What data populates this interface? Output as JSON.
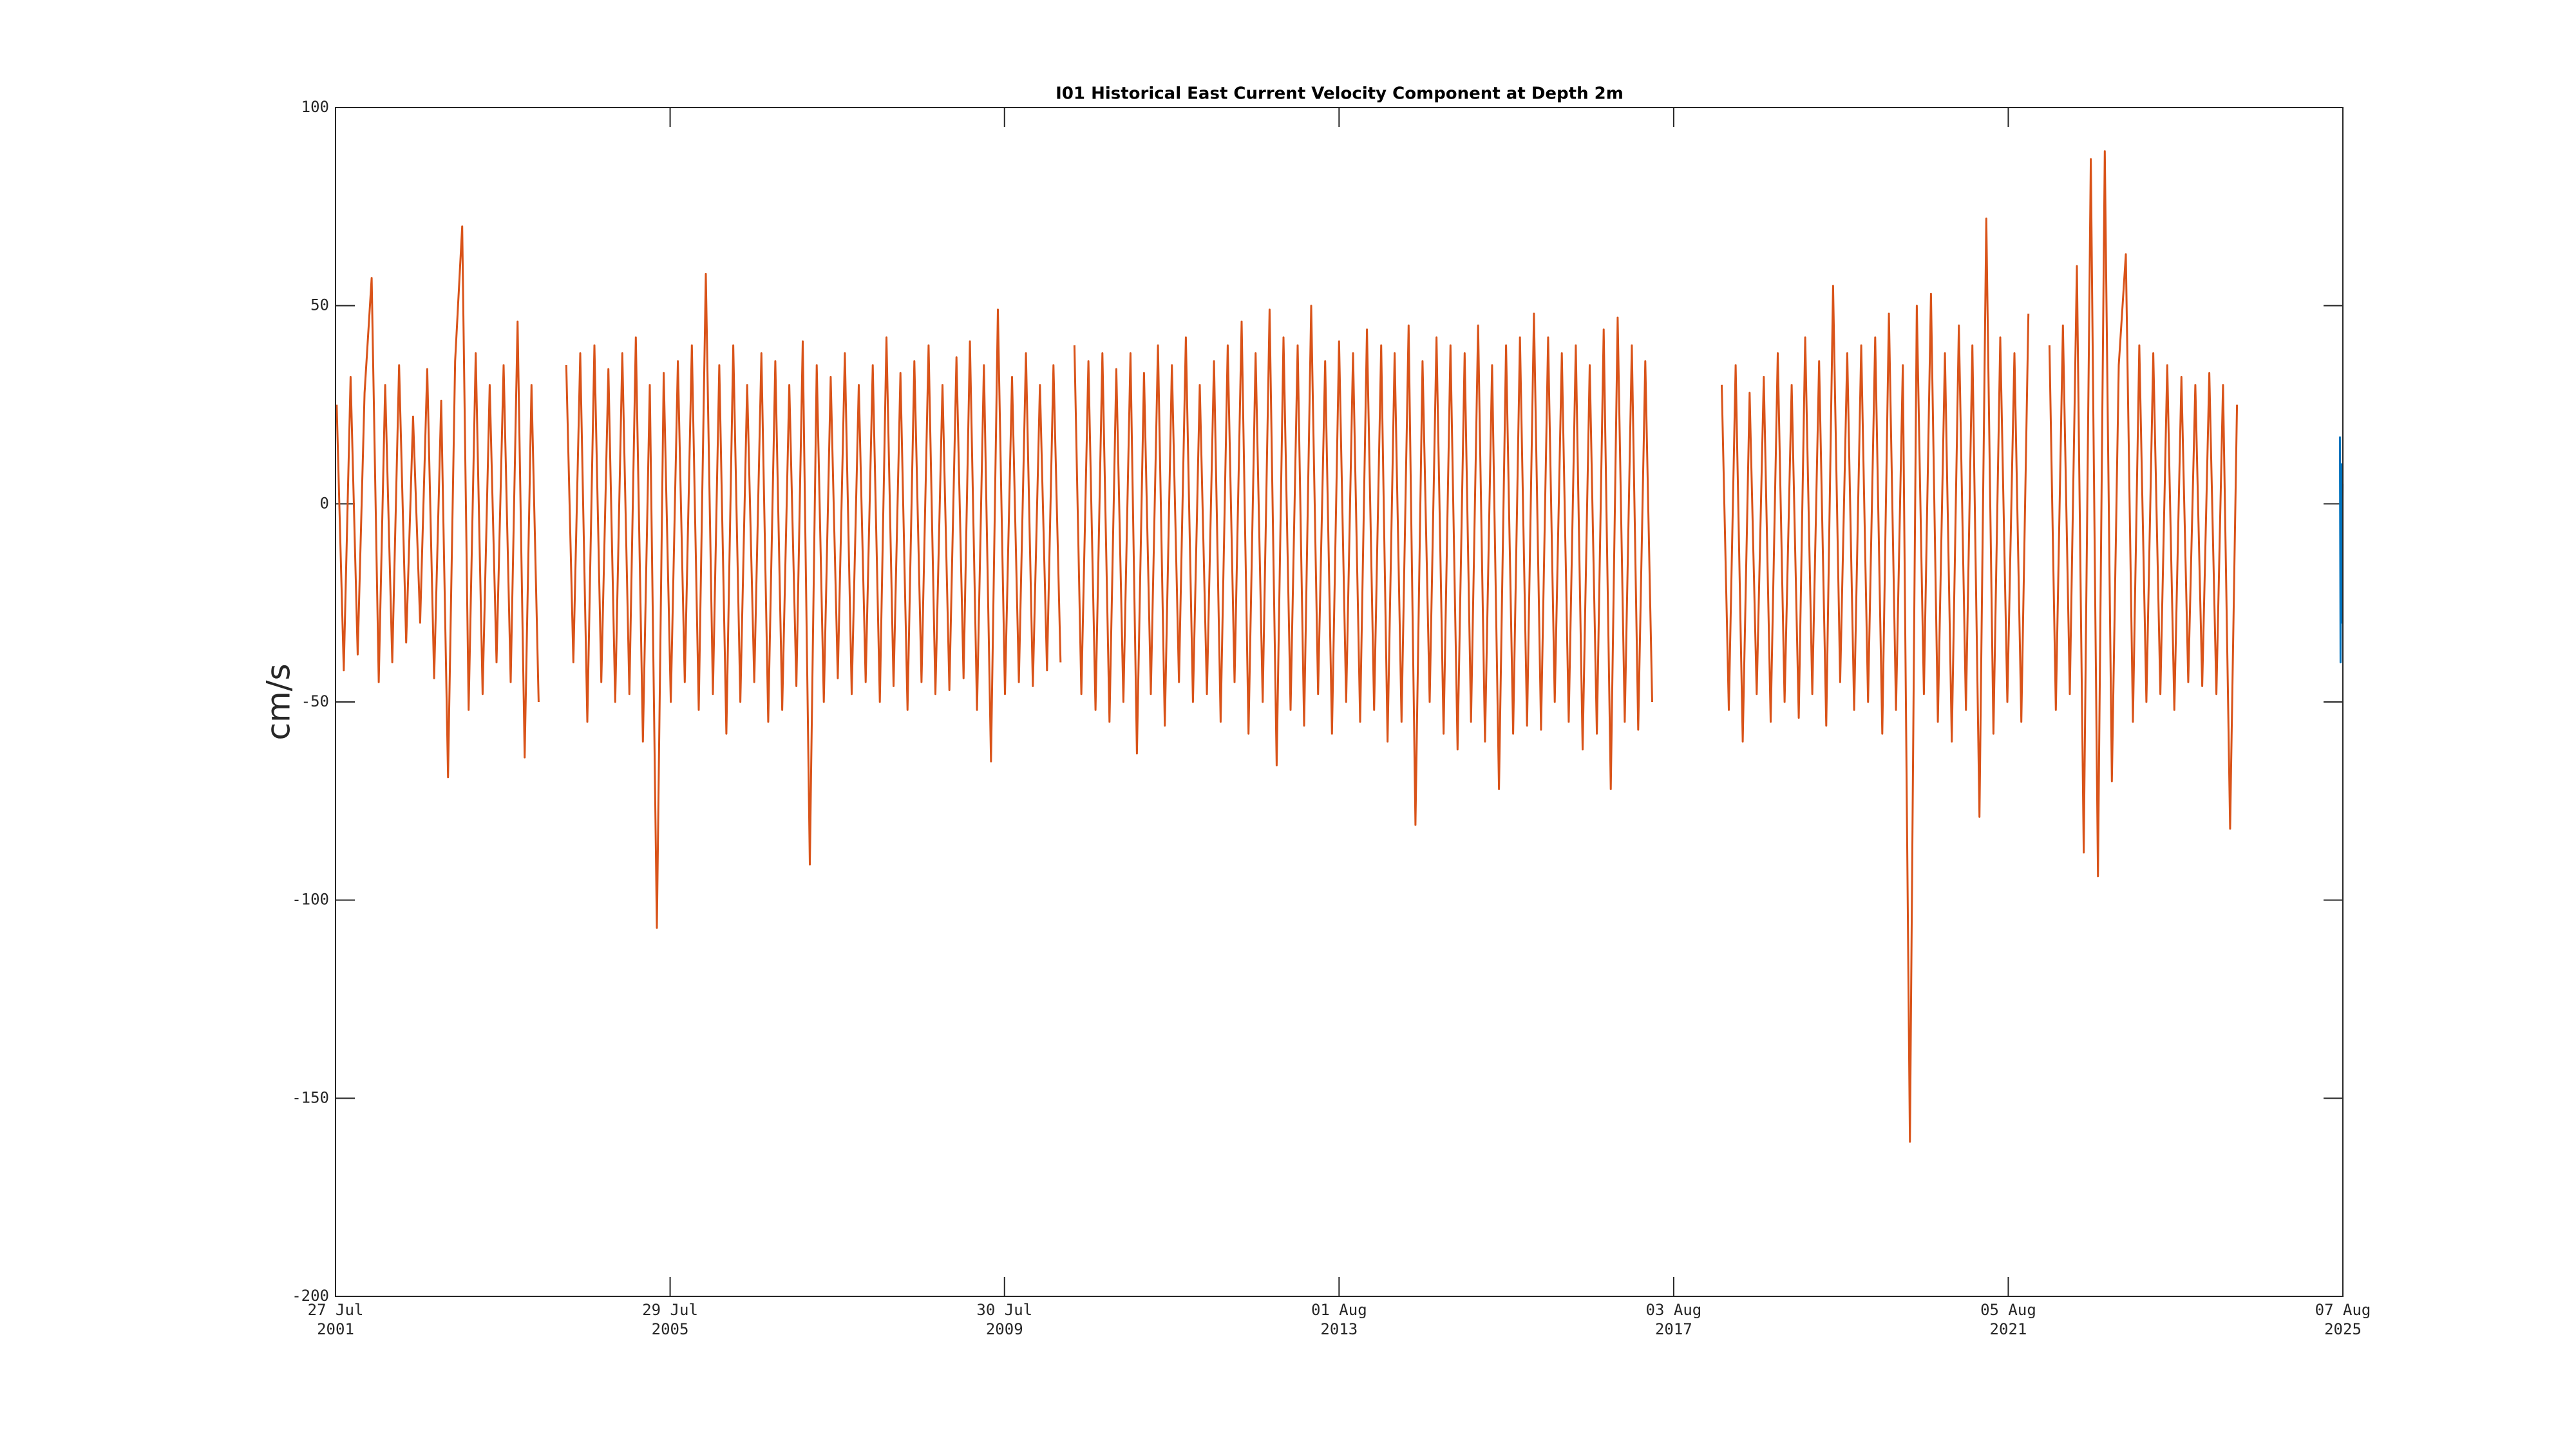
{
  "chart_data": {
    "type": "line",
    "title": "I01 Historical East Current Velocity Component at Depth 2m",
    "y_label": "cm/s",
    "ylim": [
      -200,
      100
    ],
    "yticks": [
      -200,
      -150,
      -100,
      -50,
      0,
      50,
      100
    ],
    "xlim": [
      "2001-07-27",
      "2025-08-07"
    ],
    "xticks": [
      {
        "value": "2001-07-27",
        "label": "27 Jul\n2001"
      },
      {
        "value": "2005-07-29",
        "label": "29 Jul\n2005"
      },
      {
        "value": "2009-07-30",
        "label": "30 Jul\n2009"
      },
      {
        "value": "2013-08-01",
        "label": "01 Aug\n2013"
      },
      {
        "value": "2017-08-03",
        "label": "03 Aug\n2017"
      },
      {
        "value": "2021-08-05",
        "label": "05 Aug\n2021"
      },
      {
        "value": "2025-08-07",
        "label": "07 Aug\n2025"
      }
    ],
    "series": [
      {
        "color": "#d95319",
        "x": [
          "2001-08-01",
          "2001-09-01",
          "2001-10-01",
          "2001-11-01",
          "2001-12-01",
          "2002-01-01",
          "2002-02-01",
          "2002-03-01",
          "2002-04-01",
          "2002-05-01",
          "2002-06-01",
          "2002-07-01",
          "2002-08-01",
          "2002-09-01",
          "2002-10-01",
          "2002-11-01",
          "2002-12-01",
          "2003-01-01",
          "2003-02-01",
          "2003-03-01",
          "2003-04-01",
          "2003-05-01",
          "2003-06-01",
          "2003-07-01",
          "2003-08-01",
          "2003-09-01",
          "2003-10-01",
          "2003-11-01",
          "2003-12-01",
          "2004-01-01",
          "2004-02-01",
          "2004-05-01",
          "2004-06-01",
          "2004-07-01",
          "2004-08-01",
          "2004-09-01",
          "2004-10-01",
          "2004-11-01",
          "2004-12-01",
          "2005-01-01",
          "2005-02-01",
          "2005-03-01",
          "2005-04-01",
          "2005-05-01",
          "2005-06-01",
          "2005-07-01",
          "2005-08-01",
          "2005-09-01",
          "2005-10-01",
          "2005-11-01",
          "2005-12-01",
          "2006-01-01",
          "2006-02-01",
          "2006-03-01",
          "2006-04-01",
          "2006-05-01",
          "2006-06-01",
          "2006-07-01",
          "2006-08-01",
          "2006-09-01",
          "2006-10-01",
          "2006-11-01",
          "2006-12-01",
          "2007-01-01",
          "2007-02-01",
          "2007-03-01",
          "2007-04-01",
          "2007-05-01",
          "2007-06-01",
          "2007-07-01",
          "2007-08-01",
          "2007-09-01",
          "2007-10-01",
          "2007-11-01",
          "2007-12-01",
          "2008-01-01",
          "2008-02-01",
          "2008-03-01",
          "2008-04-01",
          "2008-05-01",
          "2008-06-01",
          "2008-07-01",
          "2008-08-01",
          "2008-09-01",
          "2008-10-01",
          "2008-11-01",
          "2008-12-01",
          "2009-01-01",
          "2009-02-01",
          "2009-03-01",
          "2009-04-01",
          "2009-05-01",
          "2009-06-01",
          "2009-07-01",
          "2009-08-01",
          "2009-09-01",
          "2009-10-01",
          "2009-11-01",
          "2009-12-01",
          "2010-01-01",
          "2010-02-01",
          "2010-03-01",
          "2010-04-01",
          "2010-05-01",
          "2010-06-01",
          "2010-07-01",
          "2010-08-01",
          "2010-09-01",
          "2010-10-01",
          "2010-11-01",
          "2010-12-01",
          "2011-01-01",
          "2011-02-01",
          "2011-03-01",
          "2011-04-01",
          "2011-05-01",
          "2011-06-01",
          "2011-07-01",
          "2011-08-01",
          "2011-09-01",
          "2011-10-01",
          "2011-11-01",
          "2011-12-01",
          "2012-01-01",
          "2012-02-01",
          "2012-03-01",
          "2012-04-01",
          "2012-05-01",
          "2012-06-01",
          "2012-07-01",
          "2012-08-01",
          "2012-09-01",
          "2012-10-01",
          "2012-11-01",
          "2012-12-01",
          "2013-01-01",
          "2013-02-01",
          "2013-03-01",
          "2013-04-01",
          "2013-05-01",
          "2013-06-01",
          "2013-07-01",
          "2013-08-01",
          "2013-09-01",
          "2013-10-01",
          "2013-11-01",
          "2013-12-01",
          "2014-01-01",
          "2014-02-01",
          "2014-03-01",
          "2014-04-01",
          "2014-05-01",
          "2014-06-01",
          "2014-07-01",
          "2014-08-01",
          "2014-09-01",
          "2014-10-01",
          "2014-11-01",
          "2014-12-01",
          "2015-01-01",
          "2015-02-01",
          "2015-03-01",
          "2015-04-01",
          "2015-05-01",
          "2015-06-01",
          "2015-07-01",
          "2015-08-01",
          "2015-09-01",
          "2015-10-01",
          "2015-11-01",
          "2015-12-01",
          "2016-01-01",
          "2016-02-01",
          "2016-03-01",
          "2016-04-01",
          "2016-05-01",
          "2016-06-01",
          "2016-07-01",
          "2016-08-01",
          "2016-09-01",
          "2016-10-01",
          "2016-11-01",
          "2016-12-01",
          "2017-01-01",
          "2017-02-01",
          "2017-03-01",
          "2017-04-01",
          "2017-05-01",
          "2017-06-01",
          "2018-03-01",
          "2018-04-01",
          "2018-05-01",
          "2018-06-01",
          "2018-07-01",
          "2018-08-01",
          "2018-09-01",
          "2018-10-01",
          "2018-11-01",
          "2018-12-01",
          "2019-01-01",
          "2019-02-01",
          "2019-03-01",
          "2019-04-01",
          "2019-05-01",
          "2019-06-01",
          "2019-07-01",
          "2019-08-01",
          "2019-09-01",
          "2019-10-01",
          "2019-11-01",
          "2019-12-01",
          "2020-01-01",
          "2020-02-01",
          "2020-03-01",
          "2020-04-01",
          "2020-05-01",
          "2020-06-01",
          "2020-07-01",
          "2020-08-01",
          "2020-09-01",
          "2020-10-01",
          "2020-11-01",
          "2020-12-01",
          "2021-01-01",
          "2021-02-01",
          "2021-03-01",
          "2021-04-01",
          "2021-05-01",
          "2021-06-01",
          "2021-07-01",
          "2021-08-01",
          "2021-09-01",
          "2021-10-01",
          "2021-11-01",
          "2021-12-01",
          "2022-02-01",
          "2022-03-01",
          "2022-04-01",
          "2022-05-01",
          "2022-06-01",
          "2022-07-01",
          "2022-08-01",
          "2022-09-01",
          "2022-10-01",
          "2022-11-01",
          "2022-12-01",
          "2023-01-01",
          "2023-02-01",
          "2023-03-01",
          "2023-04-01",
          "2023-05-01",
          "2023-06-01",
          "2023-07-01",
          "2023-08-01",
          "2023-09-01",
          "2023-10-01",
          "2023-11-01",
          "2023-12-01",
          "2024-01-01",
          "2024-02-01",
          "2024-03-01",
          "2024-04-01",
          "2024-05-01"
        ],
        "values": [
          25,
          -42,
          32,
          -38,
          28,
          57,
          -45,
          30,
          -40,
          35,
          -35,
          22,
          -30,
          34,
          -44,
          26,
          -69,
          36,
          70,
          -52,
          38,
          -48,
          30,
          -40,
          35,
          -45,
          46,
          -64,
          30,
          -50,
          null,
          35,
          -40,
          38,
          -55,
          40,
          -45,
          34,
          -50,
          38,
          -48,
          42,
          -60,
          30,
          -107,
          33,
          -50,
          36,
          -45,
          40,
          -52,
          58,
          -48,
          35,
          -58,
          40,
          -50,
          30,
          -45,
          38,
          -55,
          36,
          -52,
          30,
          -46,
          41,
          -91,
          35,
          -50,
          32,
          -44,
          38,
          -48,
          30,
          -45,
          35,
          -50,
          42,
          -46,
          33,
          -52,
          36,
          -45,
          40,
          -48,
          30,
          -47,
          37,
          -44,
          41,
          -52,
          35,
          -65,
          49,
          -48,
          32,
          -45,
          38,
          -46,
          30,
          -42,
          35,
          -40,
          null,
          40,
          -48,
          36,
          -52,
          38,
          -55,
          34,
          -50,
          38,
          -63,
          33,
          -48,
          40,
          -56,
          35,
          -45,
          42,
          -50,
          30,
          -48,
          36,
          -55,
          40,
          -45,
          46,
          -58,
          38,
          -50,
          49,
          -66,
          42,
          -52,
          40,
          -56,
          50,
          -48,
          36,
          -58,
          41,
          -50,
          38,
          -55,
          44,
          -52,
          40,
          -60,
          38,
          -55,
          45,
          -81,
          36,
          -50,
          42,
          -58,
          40,
          -62,
          38,
          -55,
          45,
          -60,
          35,
          -72,
          40,
          -58,
          42,
          -56,
          48,
          -57,
          42,
          -50,
          38,
          -55,
          40,
          -62,
          35,
          -58,
          44,
          -72,
          47,
          -55,
          40,
          -57,
          36,
          -50,
          null,
          30,
          -52,
          35,
          -60,
          28,
          -48,
          32,
          -55,
          38,
          -50,
          30,
          -54,
          42,
          -48,
          36,
          -56,
          55,
          -45,
          38,
          -52,
          40,
          -50,
          42,
          -58,
          48,
          -52,
          35,
          -161,
          50,
          -48,
          53,
          -55,
          38,
          -60,
          45,
          -52,
          40,
          -79,
          72,
          -58,
          42,
          -50,
          38,
          -55,
          48,
          null,
          40,
          -52,
          45,
          -48,
          60,
          -88,
          87,
          -94,
          89,
          -70,
          35,
          63,
          -55,
          40,
          -50,
          38,
          -48,
          35,
          -52,
          32,
          -45,
          30,
          -46,
          33,
          -48,
          30,
          -82,
          25
        ]
      },
      {
        "color": "#0072bd",
        "x": [
          "2025-07-25",
          "2025-07-28",
          "2025-07-31",
          "2025-08-03",
          "2025-08-06"
        ],
        "values": [
          17,
          -40,
          10,
          -30,
          5
        ]
      }
    ]
  }
}
